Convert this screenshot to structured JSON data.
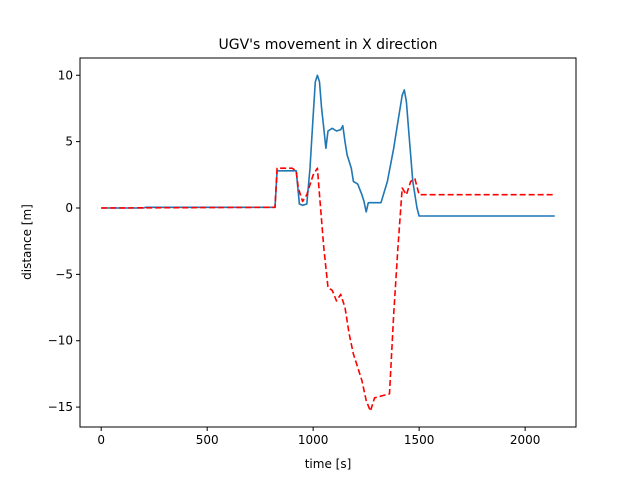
{
  "chart_data": {
    "type": "line",
    "title": "UGV's movement in X direction",
    "xlabel": "time [s]",
    "ylabel": "distance [m]",
    "xlim": [
      -100,
      2240
    ],
    "ylim": [
      -16.5,
      11.3
    ],
    "xticks": [
      0,
      500,
      1000,
      1500,
      2000
    ],
    "yticks": [
      10,
      5,
      0,
      -5,
      -10,
      -15
    ],
    "ytick_labels": [
      "10",
      "5",
      "0",
      "−5",
      "−10",
      "−15"
    ],
    "grid": false,
    "series": [
      {
        "color": "#1f77b4",
        "style": "solid",
        "points": [
          [
            0,
            0
          ],
          [
            200,
            0
          ],
          [
            210,
            0.05
          ],
          [
            820,
            0.05
          ],
          [
            830,
            2.8
          ],
          [
            920,
            2.8
          ],
          [
            935,
            0.3
          ],
          [
            950,
            0.2
          ],
          [
            970,
            0.3
          ],
          [
            985,
            3.0
          ],
          [
            1000,
            7.0
          ],
          [
            1010,
            9.5
          ],
          [
            1020,
            10.0
          ],
          [
            1030,
            9.5
          ],
          [
            1040,
            7.5
          ],
          [
            1050,
            6.0
          ],
          [
            1060,
            4.5
          ],
          [
            1070,
            5.8
          ],
          [
            1090,
            6.0
          ],
          [
            1110,
            5.8
          ],
          [
            1130,
            5.9
          ],
          [
            1140,
            6.2
          ],
          [
            1150,
            5.0
          ],
          [
            1160,
            4.0
          ],
          [
            1170,
            3.5
          ],
          [
            1180,
            3.0
          ],
          [
            1190,
            2.0
          ],
          [
            1210,
            1.8
          ],
          [
            1230,
            1.0
          ],
          [
            1240,
            0.5
          ],
          [
            1250,
            -0.3
          ],
          [
            1260,
            0.4
          ],
          [
            1290,
            0.4
          ],
          [
            1320,
            0.4
          ],
          [
            1350,
            2.0
          ],
          [
            1380,
            4.5
          ],
          [
            1400,
            6.5
          ],
          [
            1420,
            8.5
          ],
          [
            1430,
            8.9
          ],
          [
            1440,
            8.0
          ],
          [
            1450,
            6.0
          ],
          [
            1470,
            2.0
          ],
          [
            1490,
            0.0
          ],
          [
            1500,
            -0.6
          ],
          [
            2140,
            -0.6
          ]
        ]
      },
      {
        "color": "#ff0000",
        "style": "dashed",
        "points": [
          [
            0,
            0
          ],
          [
            820,
            0.05
          ],
          [
            830,
            3.0
          ],
          [
            900,
            3.0
          ],
          [
            920,
            2.8
          ],
          [
            930,
            1.5
          ],
          [
            950,
            0.5
          ],
          [
            970,
            1.0
          ],
          [
            980,
            1.5
          ],
          [
            1000,
            2.5
          ],
          [
            1020,
            3.0
          ],
          [
            1030,
            1.0
          ],
          [
            1050,
            -3.0
          ],
          [
            1070,
            -6.0
          ],
          [
            1090,
            -6.2
          ],
          [
            1110,
            -7.0
          ],
          [
            1130,
            -6.5
          ],
          [
            1150,
            -7.5
          ],
          [
            1170,
            -9.5
          ],
          [
            1190,
            -11.0
          ],
          [
            1210,
            -12.0
          ],
          [
            1230,
            -13.0
          ],
          [
            1250,
            -14.5
          ],
          [
            1270,
            -15.3
          ],
          [
            1290,
            -14.3
          ],
          [
            1360,
            -14.0
          ],
          [
            1380,
            -8.0
          ],
          [
            1400,
            -3.0
          ],
          [
            1420,
            1.5
          ],
          [
            1440,
            1.0
          ],
          [
            1460,
            2.0
          ],
          [
            1480,
            2.2
          ],
          [
            1500,
            1.0
          ],
          [
            2140,
            1.0
          ]
        ]
      }
    ]
  }
}
